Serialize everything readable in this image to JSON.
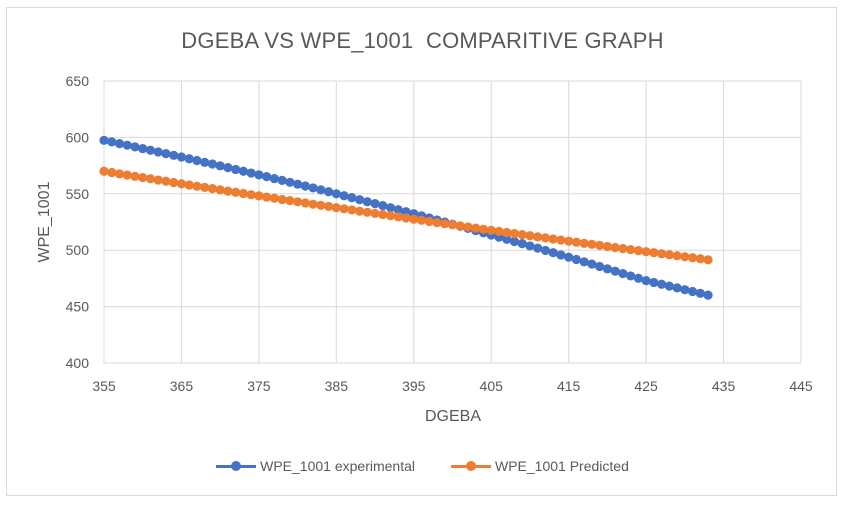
{
  "chart_data": {
    "type": "line",
    "title": "DGEBA VS WPE_1001  COMPARITIVE GRAPH",
    "xlabel": "DGEBA",
    "ylabel": "WPE_1001",
    "xlim": [
      355,
      445
    ],
    "ylim": [
      400,
      650
    ],
    "xticks": [
      355,
      365,
      375,
      385,
      395,
      405,
      415,
      425,
      435,
      445
    ],
    "yticks": [
      400,
      450,
      500,
      550,
      600,
      650
    ],
    "grid": true,
    "legend": "bottom",
    "series": [
      {
        "name": "WPE_1001 experimental",
        "color": "#4472c4",
        "x": [
          355,
          356,
          357,
          358,
          359,
          360,
          361,
          362,
          363,
          364,
          365,
          366,
          367,
          368,
          369,
          370,
          371,
          372,
          373,
          374,
          375,
          376,
          377,
          378,
          379,
          380,
          381,
          382,
          383,
          384,
          385,
          386,
          387,
          388,
          389,
          390,
          391,
          392,
          393,
          394,
          395,
          396,
          397,
          398,
          399,
          400,
          401,
          402,
          403,
          404,
          405,
          406,
          407,
          408,
          409,
          410,
          411,
          412,
          413,
          414,
          415,
          416,
          417,
          418,
          419,
          420,
          421,
          422,
          423,
          424,
          425,
          426,
          427,
          428,
          429,
          430,
          431,
          432,
          433
        ],
        "y": [
          597.4,
          596.0,
          594.5,
          593.1,
          591.6,
          590.1,
          588.6,
          587.1,
          585.6,
          584.1,
          582.6,
          581.1,
          579.5,
          577.9,
          576.4,
          574.8,
          573.2,
          571.6,
          570.0,
          568.4,
          566.8,
          565.2,
          563.5,
          561.9,
          560.2,
          558.5,
          556.9,
          555.2,
          553.5,
          551.8,
          550.0,
          548.3,
          546.6,
          544.8,
          543.0,
          541.3,
          539.5,
          537.7,
          535.9,
          534.1,
          532.3,
          530.5,
          528.6,
          526.8,
          524.9,
          523.0,
          521.2,
          519.3,
          517.4,
          515.5,
          513.5,
          511.6,
          509.7,
          507.7,
          505.8,
          503.8,
          501.8,
          499.8,
          497.8,
          495.8,
          493.8,
          491.8,
          489.7,
          487.7,
          485.6,
          483.5,
          481.4,
          479.3,
          477.2,
          475.1,
          473.0,
          471.4,
          469.8,
          468.2,
          466.6,
          465.0,
          463.4,
          461.8,
          460.2
        ]
      },
      {
        "name": "WPE_1001 Predicted",
        "color": "#ed7d31",
        "x": [
          355,
          356,
          357,
          358,
          359,
          360,
          361,
          362,
          363,
          364,
          365,
          366,
          367,
          368,
          369,
          370,
          371,
          372,
          373,
          374,
          375,
          376,
          377,
          378,
          379,
          380,
          381,
          382,
          383,
          384,
          385,
          386,
          387,
          388,
          389,
          390,
          391,
          392,
          393,
          394,
          395,
          396,
          397,
          398,
          399,
          400,
          401,
          402,
          403,
          404,
          405,
          406,
          407,
          408,
          409,
          410,
          411,
          412,
          413,
          414,
          415,
          416,
          417,
          418,
          419,
          420,
          421,
          422,
          423,
          424,
          425,
          426,
          427,
          428,
          429,
          430,
          431,
          432,
          433
        ],
        "y": [
          570.0,
          568.9,
          567.7,
          566.6,
          565.5,
          564.4,
          563.3,
          562.2,
          561.1,
          560.0,
          558.9,
          557.8,
          556.7,
          555.7,
          554.6,
          553.5,
          552.4,
          551.4,
          550.3,
          549.2,
          548.2,
          547.1,
          546.1,
          545.0,
          544.0,
          542.9,
          541.9,
          540.8,
          539.8,
          538.8,
          537.7,
          536.7,
          535.7,
          534.6,
          533.6,
          532.6,
          531.6,
          530.6,
          529.6,
          528.5,
          527.5,
          526.5,
          525.5,
          524.5,
          523.5,
          522.6,
          521.6,
          520.6,
          519.6,
          518.6,
          517.6,
          516.7,
          515.7,
          514.7,
          513.8,
          512.8,
          511.8,
          510.9,
          509.9,
          509.0,
          508.0,
          507.1,
          506.1,
          505.2,
          504.3,
          503.3,
          502.4,
          501.5,
          500.5,
          499.6,
          498.7,
          497.8,
          496.9,
          496.0,
          495.1,
          494.2,
          493.3,
          492.4,
          491.5
        ]
      }
    ]
  }
}
